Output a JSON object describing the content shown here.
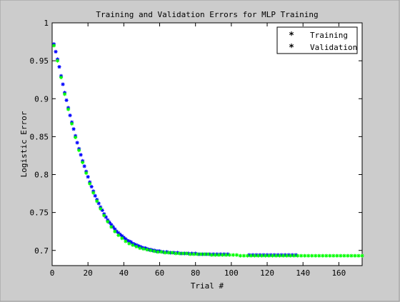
{
  "chart_data": {
    "type": "scatter",
    "title": "Training and Validation Errors for MLP Training",
    "xlabel": "Trial #",
    "ylabel": "Logistic Error",
    "xlim": [
      0,
      173
    ],
    "ylim": [
      0.68,
      1.0
    ],
    "xticks": [
      0,
      20,
      40,
      60,
      80,
      100,
      120,
      140,
      160
    ],
    "yticks": [
      0.7,
      0.75,
      0.8,
      0.85,
      0.9,
      0.95,
      1
    ],
    "ytick_labels": [
      "0.7",
      "0.75",
      "0.8",
      "0.85",
      "0.9",
      "0.95",
      "1"
    ],
    "grid": false,
    "legend_position": "top-right",
    "series": [
      {
        "name": "Training",
        "color": "#0000ff",
        "marker": "*",
        "x": [
          1,
          2,
          3,
          4,
          5,
          6,
          7,
          8,
          9,
          10,
          11,
          12,
          13,
          14,
          15,
          16,
          17,
          18,
          19,
          20,
          21,
          22,
          23,
          24,
          25,
          26,
          27,
          28,
          29,
          30,
          31,
          32,
          33,
          34,
          35,
          36,
          37,
          38,
          39,
          40,
          41,
          42,
          43,
          44,
          45,
          46,
          47,
          48,
          49,
          50,
          51,
          52,
          53,
          54,
          55,
          56,
          57,
          58,
          59,
          60,
          62,
          64,
          66,
          68,
          70,
          72,
          74,
          76,
          78,
          80,
          82,
          84,
          86,
          88,
          90,
          92,
          94,
          96,
          98,
          110,
          112,
          114,
          116,
          118,
          120,
          122,
          124,
          126,
          128,
          130,
          132,
          134,
          136
        ],
        "y": [
          0.972,
          0.962,
          0.952,
          0.942,
          0.93,
          0.919,
          0.908,
          0.898,
          0.888,
          0.878,
          0.869,
          0.86,
          0.851,
          0.842,
          0.834,
          0.826,
          0.818,
          0.811,
          0.804,
          0.797,
          0.79,
          0.784,
          0.778,
          0.772,
          0.767,
          0.762,
          0.757,
          0.753,
          0.748,
          0.744,
          0.74,
          0.737,
          0.734,
          0.731,
          0.728,
          0.725,
          0.723,
          0.721,
          0.719,
          0.717,
          0.715,
          0.713,
          0.712,
          0.711,
          0.709,
          0.708,
          0.707,
          0.706,
          0.705,
          0.704,
          0.703,
          0.703,
          0.702,
          0.701,
          0.701,
          0.7,
          0.7,
          0.699,
          0.699,
          0.699,
          0.698,
          0.698,
          0.697,
          0.697,
          0.697,
          0.696,
          0.696,
          0.696,
          0.696,
          0.696,
          0.695,
          0.695,
          0.695,
          0.695,
          0.695,
          0.695,
          0.695,
          0.695,
          0.695,
          0.694,
          0.694,
          0.694,
          0.694,
          0.694,
          0.694,
          0.694,
          0.694,
          0.694,
          0.694,
          0.694,
          0.694,
          0.694,
          0.694
        ]
      },
      {
        "name": "Validation",
        "color": "#00ff00",
        "marker": "*",
        "x": [
          1,
          3,
          5,
          7,
          9,
          11,
          13,
          15,
          17,
          19,
          21,
          23,
          25,
          27,
          29,
          31,
          33,
          35,
          37,
          39,
          41,
          43,
          45,
          47,
          49,
          51,
          53,
          55,
          57,
          59,
          61,
          63,
          65,
          67,
          69,
          71,
          73,
          75,
          77,
          79,
          81,
          83,
          85,
          87,
          89,
          91,
          93,
          95,
          97,
          99,
          101,
          103,
          105,
          107,
          109,
          111,
          113,
          115,
          117,
          119,
          121,
          123,
          125,
          127,
          129,
          131,
          133,
          135,
          137,
          139,
          141,
          143,
          145,
          147,
          149,
          151,
          153,
          155,
          157,
          159,
          161,
          163,
          165,
          167,
          169,
          171,
          173
        ],
        "y": [
          0.97,
          0.95,
          0.928,
          0.906,
          0.886,
          0.867,
          0.849,
          0.832,
          0.816,
          0.802,
          0.788,
          0.776,
          0.765,
          0.755,
          0.746,
          0.738,
          0.731,
          0.725,
          0.72,
          0.716,
          0.712,
          0.709,
          0.707,
          0.705,
          0.703,
          0.702,
          0.701,
          0.7,
          0.699,
          0.698,
          0.698,
          0.697,
          0.697,
          0.697,
          0.696,
          0.696,
          0.696,
          0.696,
          0.695,
          0.695,
          0.695,
          0.695,
          0.695,
          0.695,
          0.694,
          0.694,
          0.694,
          0.694,
          0.694,
          0.694,
          0.694,
          0.694,
          0.693,
          0.693,
          0.693,
          0.693,
          0.693,
          0.693,
          0.693,
          0.693,
          0.693,
          0.693,
          0.693,
          0.693,
          0.693,
          0.693,
          0.693,
          0.693,
          0.693,
          0.693,
          0.693,
          0.693,
          0.693,
          0.693,
          0.693,
          0.693,
          0.693,
          0.693,
          0.693,
          0.693,
          0.693,
          0.693,
          0.693,
          0.693,
          0.693,
          0.693,
          0.693
        ]
      }
    ]
  }
}
